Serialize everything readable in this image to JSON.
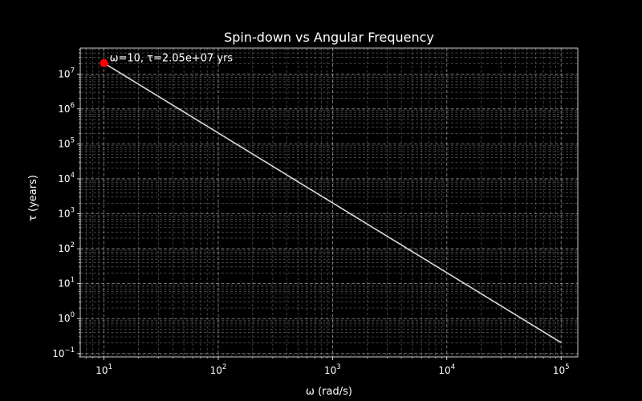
{
  "chart_data": {
    "type": "line",
    "title": "Spin-down vs Angular Frequency",
    "xlabel": "ω (rad/s)",
    "ylabel": "τ (years)",
    "xscale": "log",
    "yscale": "log",
    "xlim": [
      6.2,
      140000
    ],
    "ylim": [
      0.08,
      55000000
    ],
    "grid": "major and minor",
    "x_ticks": [
      {
        "value": 10,
        "base": "10",
        "exp": "1"
      },
      {
        "value": 100,
        "base": "10",
        "exp": "2"
      },
      {
        "value": 1000,
        "base": "10",
        "exp": "3"
      },
      {
        "value": 10000,
        "base": "10",
        "exp": "4"
      },
      {
        "value": 100000,
        "base": "10",
        "exp": "5"
      }
    ],
    "y_ticks": [
      {
        "value": 0.1,
        "base": "10",
        "exp": "−1"
      },
      {
        "value": 1,
        "base": "10",
        "exp": "0"
      },
      {
        "value": 10,
        "base": "10",
        "exp": "1"
      },
      {
        "value": 100,
        "base": "10",
        "exp": "2"
      },
      {
        "value": 1000,
        "base": "10",
        "exp": "3"
      },
      {
        "value": 10000,
        "base": "10",
        "exp": "4"
      },
      {
        "value": 100000,
        "base": "10",
        "exp": "5"
      },
      {
        "value": 1000000,
        "base": "10",
        "exp": "6"
      },
      {
        "value": 10000000,
        "base": "10",
        "exp": "7"
      }
    ],
    "series": [
      {
        "color": "#d9d9d9",
        "x": [
          10,
          100000
        ],
        "y": [
          20500000,
          0.205
        ]
      }
    ],
    "highlight": {
      "x": 10,
      "y": 20500000,
      "color": "#ff0000",
      "label": "ω=10, τ=2.05e+07 yrs"
    }
  }
}
